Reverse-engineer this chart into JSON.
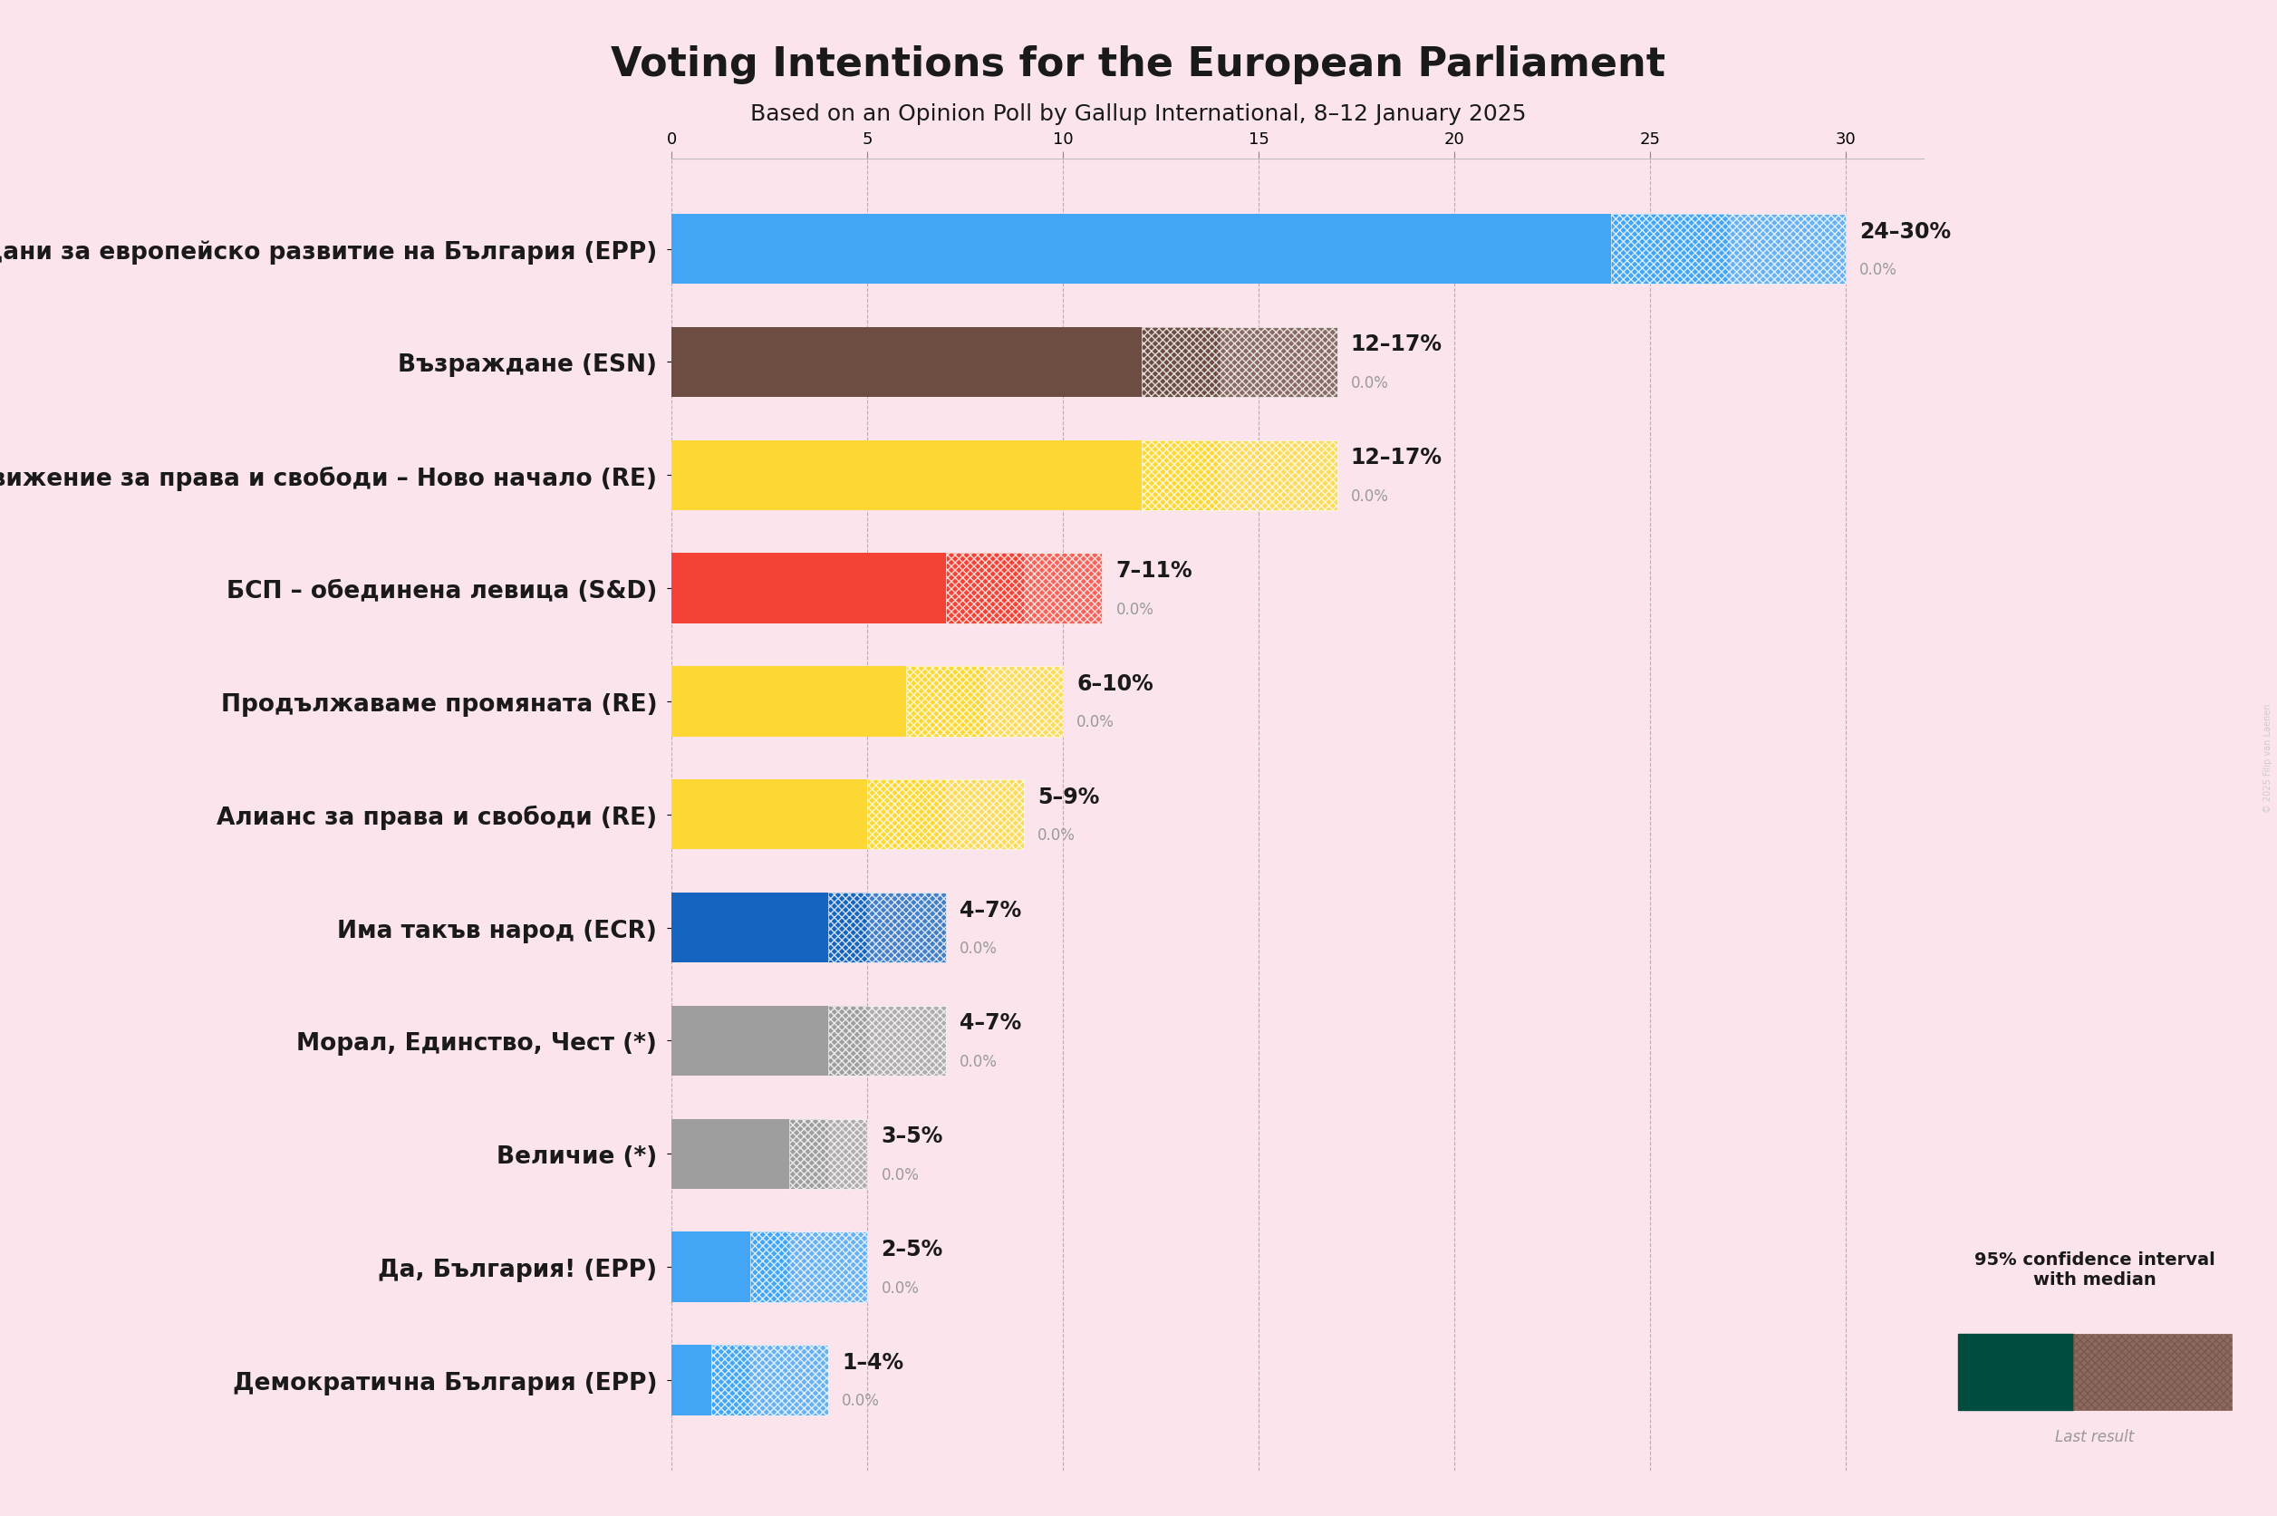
{
  "title": "Voting Intentions for the European Parliament",
  "subtitle": "Based on an Opinion Poll by Gallup International, 8–12 January 2025",
  "background_color": "#fce4ec",
  "parties": [
    {
      "label": "Граждани за европейско развитие на България (EPP)",
      "low": 24,
      "median": 27,
      "high": 30,
      "color": "#42a5f5",
      "range_label": "24–30%",
      "last_result": "0.0%"
    },
    {
      "label": "Възраждане (ESN)",
      "low": 12,
      "median": 14,
      "high": 17,
      "color": "#6d4c41",
      "range_label": "12–17%",
      "last_result": "0.0%"
    },
    {
      "label": "Движение за права и свободи – Ново начало (RE)",
      "low": 12,
      "median": 14,
      "high": 17,
      "color": "#fdd835",
      "range_label": "12–17%",
      "last_result": "0.0%"
    },
    {
      "label": "БСП – обединена левица (S&D)",
      "low": 7,
      "median": 9,
      "high": 11,
      "color": "#f44336",
      "range_label": "7–11%",
      "last_result": "0.0%"
    },
    {
      "label": "Продължаваме промяната (RE)",
      "low": 6,
      "median": 8,
      "high": 10,
      "color": "#fdd835",
      "range_label": "6–10%",
      "last_result": "0.0%"
    },
    {
      "label": "Алианс за права и свободи (RE)",
      "low": 5,
      "median": 7,
      "high": 9,
      "color": "#fdd835",
      "range_label": "5–9%",
      "last_result": "0.0%"
    },
    {
      "label": "Има такъв народ (ECR)",
      "low": 4,
      "median": 5,
      "high": 7,
      "color": "#1565c0",
      "range_label": "4–7%",
      "last_result": "0.0%"
    },
    {
      "label": "Морал, Единство, Чест (*)",
      "low": 4,
      "median": 5,
      "high": 7,
      "color": "#9e9e9e",
      "range_label": "4–7%",
      "last_result": "0.0%"
    },
    {
      "label": "Величие (*)",
      "low": 3,
      "median": 4,
      "high": 5,
      "color": "#9e9e9e",
      "range_label": "3–5%",
      "last_result": "0.0%"
    },
    {
      "label": "Да, България! (EPP)",
      "low": 2,
      "median": 3,
      "high": 5,
      "color": "#42a5f5",
      "range_label": "2–5%",
      "last_result": "0.0%"
    },
    {
      "label": "Демократична България (EPP)",
      "low": 1,
      "median": 2,
      "high": 4,
      "color": "#42a5f5",
      "range_label": "1–4%",
      "last_result": "0.0%"
    }
  ],
  "xlim_max": 32,
  "x_ticks": [
    0,
    5,
    10,
    15,
    20,
    25,
    30
  ],
  "legend_solid_color": "#004d40",
  "legend_hatch_color": "#795548",
  "title_fontsize": 32,
  "subtitle_fontsize": 18,
  "label_fontsize": 19,
  "range_fontsize": 17,
  "last_result_fontsize": 12,
  "tick_fontsize": 13,
  "watermark": "© 2025 Filip van Laenen",
  "text_color": "#1a1a1a",
  "grid_color": "#999999",
  "bar_height": 0.62
}
